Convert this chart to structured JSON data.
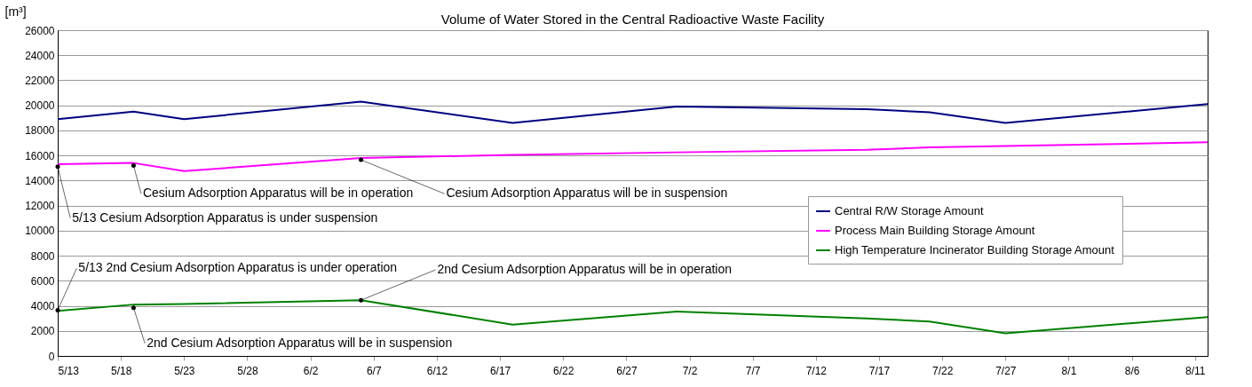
{
  "chart_data": {
    "type": "line",
    "title": "Volume of Water Stored in the Central Radioactive Waste Facility",
    "ylabel": "[m³]",
    "x": [
      "--05-13",
      "--05-19",
      "--05-23",
      "--06-06",
      "--06-18",
      "--07-01",
      "--07-16",
      "--07-21",
      "--07-27",
      "--08-12"
    ],
    "series": [
      {
        "name": "Central R/W Storage Amount",
        "color": "#000080",
        "values": [
          18900,
          19500,
          18900,
          20300,
          18600,
          19900,
          19700,
          19450,
          18600,
          20100
        ]
      },
      {
        "name": "Process Main Building Storage Amount",
        "color": "#ff00ff",
        "values": [
          15300,
          15400,
          14750,
          15800,
          16050,
          16250,
          16450,
          16650,
          16750,
          17050
        ]
      },
      {
        "name": "High Temperature Incinerator Building Storage Amount",
        "color": "#008000",
        "values": [
          3600,
          4100,
          4150,
          4450,
          2500,
          3550,
          3000,
          2750,
          1800,
          3100
        ]
      }
    ],
    "xlim": [
      "--05-13",
      "--08-12"
    ],
    "xticks": [
      {
        "value": "--05-13",
        "label": "5/13"
      },
      {
        "value": "--05-18",
        "label": "5/18"
      },
      {
        "value": "--05-23",
        "label": "5/23"
      },
      {
        "value": "--05-28",
        "label": "5/28"
      },
      {
        "value": "--06-02",
        "label": "6/2"
      },
      {
        "value": "--06-07",
        "label": "6/7"
      },
      {
        "value": "--06-12",
        "label": "6/12"
      },
      {
        "value": "--06-17",
        "label": "6/17"
      },
      {
        "value": "--06-22",
        "label": "6/22"
      },
      {
        "value": "--06-27",
        "label": "6/27"
      },
      {
        "value": "--07-02",
        "label": "7/2"
      },
      {
        "value": "--07-07",
        "label": "7/7"
      },
      {
        "value": "--07-12",
        "label": "7/12"
      },
      {
        "value": "--07-17",
        "label": "7/17"
      },
      {
        "value": "--07-22",
        "label": "7/22"
      },
      {
        "value": "--07-27",
        "label": "7/27"
      },
      {
        "value": "--08-01",
        "label": "8/1"
      },
      {
        "value": "--08-06",
        "label": "8/6"
      },
      {
        "value": "--08-11",
        "label": "8/11"
      }
    ],
    "ylim": [
      0,
      26000
    ],
    "yticks": [
      0,
      2000,
      4000,
      6000,
      8000,
      10000,
      12000,
      14000,
      16000,
      18000,
      20000,
      22000,
      24000,
      26000
    ],
    "grid": "y",
    "legend": "right",
    "marker": "none",
    "line_style": "solid",
    "annotations": [
      {
        "text": "Cesium Adsorption Apparatus will be in operation",
        "x": "--05-19",
        "y": 15200
      },
      {
        "text": "Cesium Adsorption Apparatus will be in suspension",
        "x": "--06-06",
        "y": 15650
      },
      {
        "text": "5/13 Cesium Adsorption Apparatus is under suspension",
        "x": "--05-13",
        "y": 15100
      },
      {
        "text": "5/13 2nd Cesium Adsorption Apparatus is under operation",
        "x": "--05-13",
        "y": 3650
      },
      {
        "text": "2nd Cesium Adsorption Apparatus will be in operation",
        "x": "--06-06",
        "y": 4450
      },
      {
        "text": "2nd Cesium Adsorption Apparatus will be in suspension",
        "x": "--05-19",
        "y": 3850
      }
    ]
  }
}
